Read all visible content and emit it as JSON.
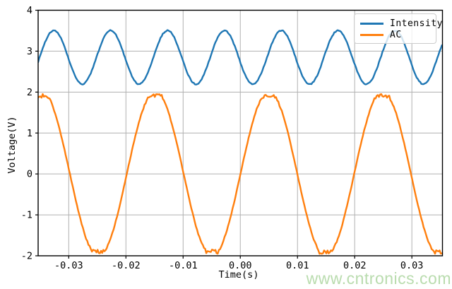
{
  "chart_data": {
    "type": "line",
    "title": "",
    "xlabel": "Time(s)",
    "ylabel": "Voltage(V)",
    "xlim": [
      -0.03535,
      0.03535
    ],
    "ylim": [
      -2,
      4
    ],
    "grid": true,
    "grid_color": "#b0b0b0",
    "axes_color": "#000000",
    "background_color": "#ffffff",
    "legend_position": "upper right",
    "xticks": [
      {
        "value": -0.03,
        "label": "-0.03"
      },
      {
        "value": -0.02,
        "label": "-0.02"
      },
      {
        "value": -0.01,
        "label": "-0.01"
      },
      {
        "value": 0.0,
        "label": "0.00"
      },
      {
        "value": 0.01,
        "label": "0.01"
      },
      {
        "value": 0.02,
        "label": "0.02"
      },
      {
        "value": 0.03,
        "label": "0.03"
      }
    ],
    "yticks": [
      {
        "value": 4,
        "label": "4"
      },
      {
        "value": 3,
        "label": "3"
      },
      {
        "value": 2,
        "label": "2"
      },
      {
        "value": 1,
        "label": "1"
      },
      {
        "value": 0,
        "label": "0"
      },
      {
        "value": -1,
        "label": "-1"
      },
      {
        "value": -2,
        "label": "-2"
      }
    ],
    "sample_step_s": 0.0002,
    "series": [
      {
        "name": "Intensity",
        "color": "#1f77b4",
        "waveform": "sine",
        "offset_v": 2.85,
        "amplitude_v": 0.655,
        "frequency_hz": 100.6,
        "peak_time_s": -0.0326,
        "noise_v": 0.013,
        "approx_max_v": 3.5,
        "approx_min_v": 2.2
      },
      {
        "name": "AC",
        "color": "#ff7f0e",
        "waveform": "clipped-sine",
        "offset_v": 0,
        "amplitude_v": 2.02,
        "clip_v": 1.9,
        "frequency_hz": 50.3,
        "peak_time_s": 0.005,
        "noise_v": 0.012,
        "peak_noise_v": 0.04,
        "approx_max_v": 1.9,
        "approx_min_v": -1.9
      }
    ]
  },
  "watermark": {
    "text": "www.cntronics.com",
    "color": "#b9dcae"
  }
}
